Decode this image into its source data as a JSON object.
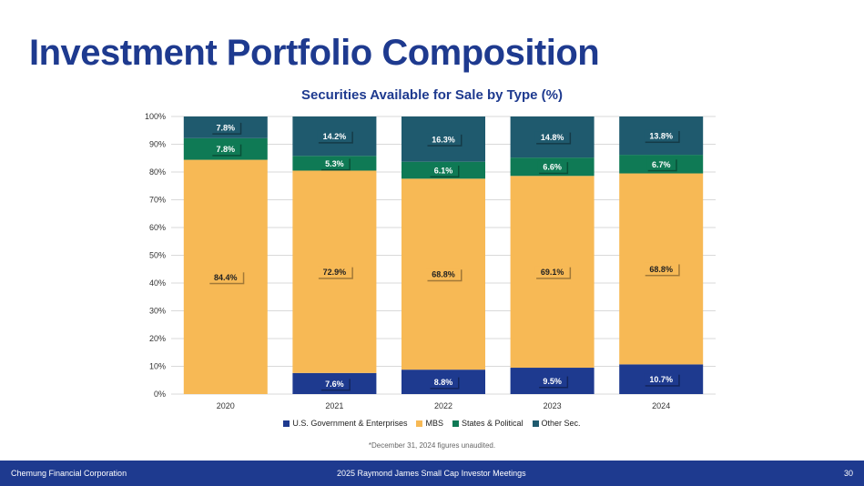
{
  "page_title": "Investment Portfolio Composition",
  "footnote": "*December 31, 2024 figures unaudited.",
  "footer": {
    "left": "Chemung Financial Corporation",
    "center": "2025 Raymond James Small Cap Investor Meetings",
    "page_number": "30"
  },
  "colors": {
    "title": "#1e3a8f",
    "us_gov": "#1e3a8f",
    "mbs": "#f7b955",
    "states": "#0f7a55",
    "other": "#1f5a6e",
    "footer_bg": "#1e3a8f"
  },
  "chart_data": {
    "type": "bar",
    "stacked": true,
    "title": "Securities Available for Sale by Type (%)",
    "xlabel": "",
    "ylabel": "",
    "ylim": [
      0,
      100
    ],
    "yticks": [
      "0%",
      "10%",
      "20%",
      "30%",
      "40%",
      "50%",
      "60%",
      "70%",
      "80%",
      "90%",
      "100%"
    ],
    "grid": true,
    "legend_position": "bottom",
    "categories": [
      "2020",
      "2021",
      "2022",
      "2023",
      "2024"
    ],
    "series": [
      {
        "name": "U.S. Government & Enterprises",
        "color": "#1e3a8f",
        "values": [
          0,
          7.6,
          8.8,
          9.5,
          10.7
        ],
        "labels": [
          "",
          "7.6%",
          "8.8%",
          "9.5%",
          "10.7%"
        ]
      },
      {
        "name": "MBS",
        "color": "#f7b955",
        "values": [
          84.4,
          72.9,
          68.8,
          69.1,
          68.8
        ],
        "labels": [
          "84.4%",
          "72.9%",
          "68.8%",
          "69.1%",
          "68.8%"
        ]
      },
      {
        "name": "States & Political",
        "color": "#0f7a55",
        "values": [
          7.8,
          5.3,
          6.1,
          6.6,
          6.7
        ],
        "labels": [
          "7.8%",
          "5.3%",
          "6.1%",
          "6.6%",
          "6.7%"
        ]
      },
      {
        "name": "Other Sec.",
        "color": "#1f5a6e",
        "values": [
          7.8,
          14.2,
          16.3,
          14.8,
          13.8
        ],
        "labels": [
          "7.8%",
          "14.2%",
          "16.3%",
          "14.8%",
          "13.8%"
        ]
      }
    ]
  }
}
